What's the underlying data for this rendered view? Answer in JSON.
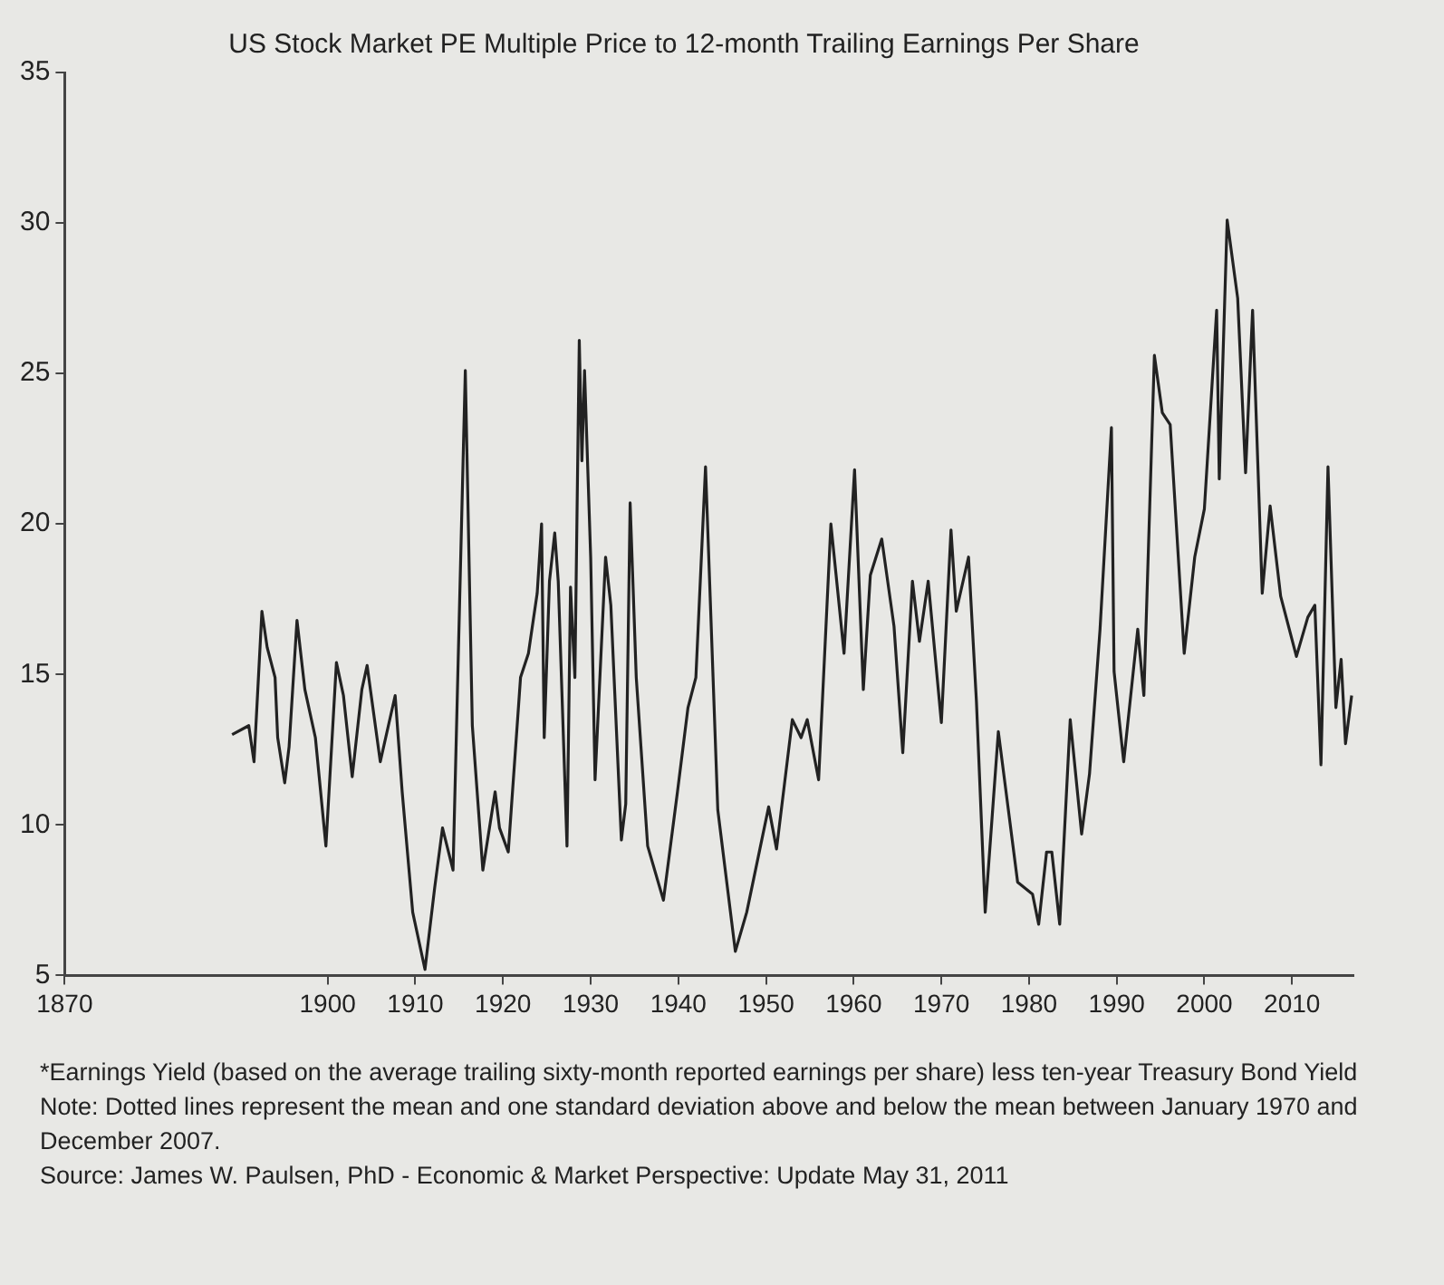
{
  "chart_data": {
    "type": "line",
    "title": "US Stock Market PE Multiple Price to 12-month Trailing Earnings Per Share",
    "annotations": [
      "*Earnings Yield (based on the average trailing sixty-month reported earnings per share) less ten-year Treasury Bond Yield",
      "Note: Dotted lines represent the mean and one standard deviation above and below the mean between January 1970 and December 2007.",
      "Source: James W. Paulsen, PhD - Economic & Market Perspective: Update May 31, 2011"
    ],
    "x": [
      1889.1,
      1891.0,
      1891.6,
      1892.5,
      1893.1,
      1894.0,
      1894.3,
      1895.1,
      1895.6,
      1896.5,
      1897.4,
      1898.6,
      1899.8,
      1901.0,
      1901.8,
      1902.8,
      1903.9,
      1904.5,
      1906.0,
      1907.7,
      1908.5,
      1909.7,
      1911.1,
      1912.2,
      1913.1,
      1914.3,
      1915.7,
      1916.5,
      1917.7,
      1919.1,
      1919.6,
      1920.6,
      1922.0,
      1922.9,
      1923.9,
      1924.4,
      1924.7,
      1925.3,
      1925.9,
      1926.3,
      1927.3,
      1927.7,
      1928.2,
      1928.7,
      1929.0,
      1929.3,
      1930.0,
      1930.5,
      1931.7,
      1932.3,
      1933.5,
      1934.0,
      1934.5,
      1935.2,
      1936.5,
      1938.3,
      1939.9,
      1941.1,
      1942.0,
      1943.1,
      1944.5,
      1946.5,
      1947.8,
      1950.3,
      1951.2,
      1953.0,
      1954.0,
      1954.7,
      1956.0,
      1957.4,
      1958.9,
      1960.1,
      1961.1,
      1961.9,
      1963.2,
      1964.6,
      1965.6,
      1966.7,
      1967.5,
      1968.5,
      1970.0,
      1971.1,
      1971.7,
      1973.1,
      1974.0,
      1975.0,
      1976.5,
      1978.7,
      1980.4,
      1981.1,
      1982.0,
      1982.6,
      1983.5,
      1984.7,
      1986.0,
      1986.9,
      1988.1,
      1989.4,
      1989.7,
      1990.8,
      1992.4,
      1993.1,
      1994.3,
      1995.2,
      1996.1,
      1997.7,
      1998.9,
      2000.0,
      2001.4,
      2001.7,
      2002.6,
      2003.8,
      2004.7,
      2005.5,
      2006.6,
      2007.5,
      2008.7,
      2010.5,
      2011.8,
      2012.6,
      2013.3,
      2014.1,
      2015.0,
      2015.6,
      2016.1,
      2016.8
    ],
    "series": [
      {
        "color": "#222222",
        "values": [
          13.0,
          13.3,
          12.1,
          17.1,
          15.9,
          14.9,
          12.9,
          11.4,
          12.6,
          16.8,
          14.5,
          12.9,
          9.3,
          15.4,
          14.3,
          11.6,
          14.5,
          15.3,
          12.1,
          14.3,
          11.1,
          7.1,
          5.2,
          7.9,
          9.9,
          8.5,
          25.1,
          13.3,
          8.5,
          11.1,
          9.9,
          9.1,
          14.9,
          15.7,
          17.7,
          20.0,
          12.9,
          18.1,
          19.7,
          18.1,
          9.3,
          17.9,
          14.9,
          26.1,
          22.1,
          25.1,
          18.9,
          11.5,
          18.9,
          17.3,
          9.5,
          10.7,
          20.7,
          14.9,
          9.3,
          7.5,
          11.1,
          13.9,
          14.9,
          21.9,
          10.5,
          5.8,
          7.1,
          10.6,
          9.2,
          13.5,
          12.9,
          13.5,
          11.5,
          20.0,
          15.7,
          21.8,
          14.5,
          18.3,
          19.5,
          16.6,
          12.4,
          18.1,
          16.1,
          18.1,
          13.4,
          19.8,
          17.1,
          18.9,
          14.1,
          7.1,
          13.1,
          8.1,
          7.7,
          6.7,
          9.1,
          9.1,
          6.7,
          13.5,
          9.7,
          11.7,
          16.5,
          23.2,
          15.1,
          12.1,
          16.5,
          14.3,
          25.6,
          23.7,
          23.3,
          15.7,
          18.9,
          20.5,
          27.1,
          21.5,
          30.1,
          27.5,
          21.7,
          27.1,
          17.7,
          20.6,
          17.6,
          15.6,
          16.9,
          17.3,
          12.0,
          21.9,
          13.9,
          15.5,
          12.7,
          14.3
        ]
      }
    ],
    "xlim": [
      1870,
      2017
    ],
    "xticks": [
      1870,
      1900,
      1910,
      1920,
      1930,
      1940,
      1950,
      1960,
      1970,
      1980,
      1990,
      2000,
      2010
    ],
    "ylim": [
      5,
      35
    ],
    "yticks": [
      5,
      10,
      15,
      20,
      25,
      30,
      35
    ],
    "grid": false,
    "legend": false,
    "marker": "none",
    "line_style": "solid"
  }
}
